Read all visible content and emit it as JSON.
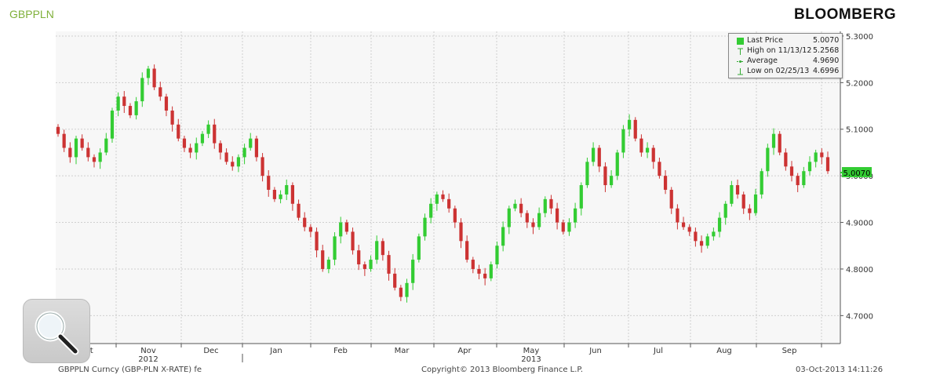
{
  "header": {
    "ticker": "GBPPLN",
    "brand": "BLOOMBERG"
  },
  "footer": {
    "left": "GBPPLN Curncy (GBP-PLN X-RATE) fe",
    "center": "Copyright© 2013 Bloomberg Finance L.P.",
    "right": "03-Oct-2013 14:11:26"
  },
  "legend": {
    "items": [
      {
        "symbol": "green-square-icon",
        "label": "Last Price",
        "value": "5.0070"
      },
      {
        "symbol": "high-marker-icon",
        "label": "High on 11/13/12",
        "value": "5.2568"
      },
      {
        "symbol": "average-marker-icon",
        "label": "Average",
        "value": "4.9690"
      },
      {
        "symbol": "low-marker-icon",
        "label": "Low on 02/25/13",
        "value": "4.6996"
      }
    ]
  },
  "chart_data": {
    "type": "candlestick",
    "x_tick_labels": [
      "Oct",
      "Nov",
      "Dec",
      "Jan",
      "Feb",
      "Mar",
      "Apr",
      "May",
      "Jun",
      "Jul",
      "Aug",
      "Sep"
    ],
    "year_labels": [
      "2012",
      "2013"
    ],
    "y_tick_labels": [
      "4.7000",
      "4.8000",
      "4.9000",
      "5.0000",
      "5.1000",
      "5.2000",
      "5.3000"
    ],
    "ylim": [
      4.64,
      5.31
    ],
    "last_price_label": "5.0070",
    "last_price": 5.007,
    "colors": {
      "up": "#33cc33",
      "down": "#cc3333",
      "last_price_badge": "#33cc33"
    },
    "grid": true,
    "legend_position": "top-right",
    "closes": [
      5.09,
      5.06,
      5.04,
      5.08,
      5.06,
      5.04,
      5.03,
      5.05,
      5.08,
      5.14,
      5.17,
      5.15,
      5.13,
      5.16,
      5.21,
      5.23,
      5.19,
      5.17,
      5.14,
      5.11,
      5.08,
      5.06,
      5.05,
      5.07,
      5.09,
      5.11,
      5.07,
      5.05,
      5.03,
      5.02,
      5.04,
      5.06,
      5.08,
      5.04,
      5.0,
      4.97,
      4.95,
      4.96,
      4.98,
      4.94,
      4.91,
      4.89,
      4.88,
      4.84,
      4.8,
      4.82,
      4.87,
      4.9,
      4.88,
      4.84,
      4.81,
      4.8,
      4.82,
      4.86,
      4.83,
      4.79,
      4.76,
      4.74,
      4.77,
      4.82,
      4.87,
      4.91,
      4.94,
      4.96,
      4.95,
      4.93,
      4.9,
      4.86,
      4.82,
      4.8,
      4.79,
      4.78,
      4.81,
      4.85,
      4.89,
      4.93,
      4.94,
      4.92,
      4.9,
      4.89,
      4.92,
      4.95,
      4.93,
      4.9,
      4.88,
      4.9,
      4.93,
      4.98,
      5.03,
      5.06,
      5.02,
      4.98,
      5.0,
      5.05,
      5.1,
      5.12,
      5.08,
      5.05,
      5.06,
      5.03,
      5.0,
      4.97,
      4.93,
      4.9,
      4.89,
      4.88,
      4.86,
      4.85,
      4.87,
      4.88,
      4.91,
      4.94,
      4.98,
      4.96,
      4.93,
      4.92,
      4.96,
      5.01,
      5.06,
      5.09,
      5.05,
      5.02,
      5.0,
      4.98,
      5.01,
      5.03,
      5.05,
      5.04,
      5.01
    ]
  }
}
